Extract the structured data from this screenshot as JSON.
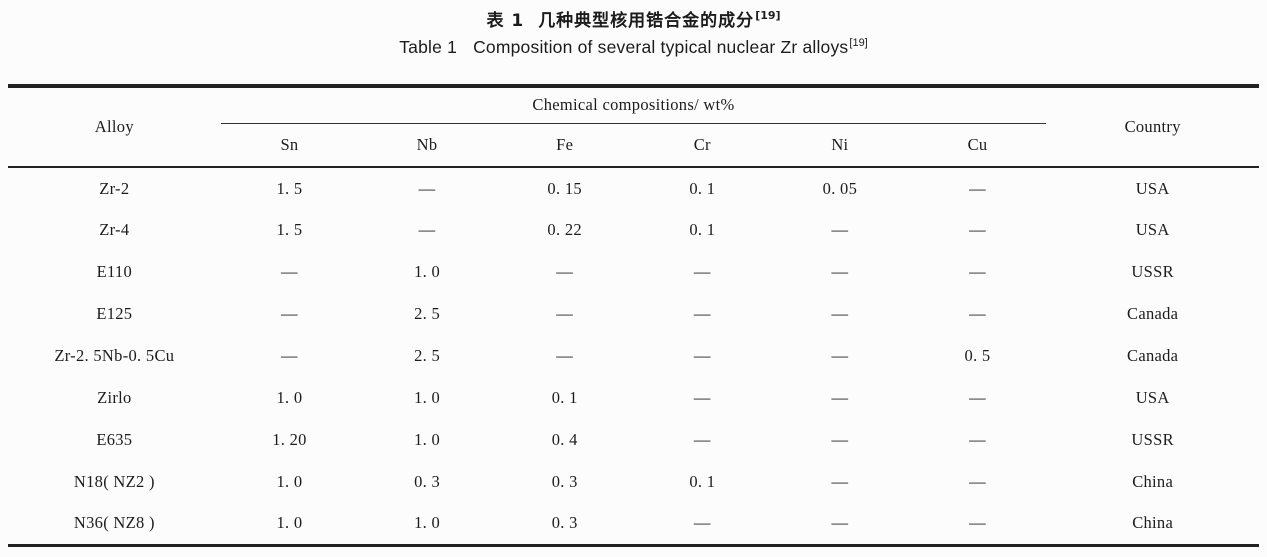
{
  "page": {
    "background": "#fcfcfc",
    "text_color": "#1c1c1c",
    "rule_color": "#222222"
  },
  "title_zh": {
    "label": "表 1",
    "text": "几种典型核用锆合金的成分",
    "sup": "[19]"
  },
  "title_en": {
    "label": "Table 1",
    "text": "Composition of several typical nuclear Zr alloys",
    "sup": "[19]"
  },
  "table": {
    "header": {
      "alloy": "Alloy",
      "group": "Chemical compositions/ wt%",
      "elements": [
        "Sn",
        "Nb",
        "Fe",
        "Cr",
        "Ni",
        "Cu"
      ],
      "country": "Country"
    },
    "rows": [
      [
        "Zr-2",
        "1. 5",
        "—",
        "0. 15",
        "0. 1",
        "0. 05",
        "—",
        "USA"
      ],
      [
        "Zr-4",
        "1. 5",
        "—",
        "0. 22",
        "0. 1",
        "—",
        "—",
        "USA"
      ],
      [
        "E110",
        "—",
        "1. 0",
        "—",
        "—",
        "—",
        "—",
        "USSR"
      ],
      [
        "E125",
        "—",
        "2. 5",
        "—",
        "—",
        "—",
        "—",
        "Canada"
      ],
      [
        "Zr-2. 5Nb-0. 5Cu",
        "—",
        "2. 5",
        "—",
        "—",
        "—",
        "0. 5",
        "Canada"
      ],
      [
        "Zirlo",
        "1. 0",
        "1. 0",
        "0. 1",
        "—",
        "—",
        "—",
        "USA"
      ],
      [
        "E635",
        "1. 20",
        "1. 0",
        "0. 4",
        "—",
        "—",
        "—",
        "USSR"
      ],
      [
        "N18( NZ2 )",
        "1. 0",
        "0. 3",
        "0. 3",
        "0. 1",
        "—",
        "—",
        "China"
      ],
      [
        "N36( NZ8 )",
        "1. 0",
        "1. 0",
        "0. 3",
        "—",
        "—",
        "—",
        "China"
      ]
    ]
  }
}
